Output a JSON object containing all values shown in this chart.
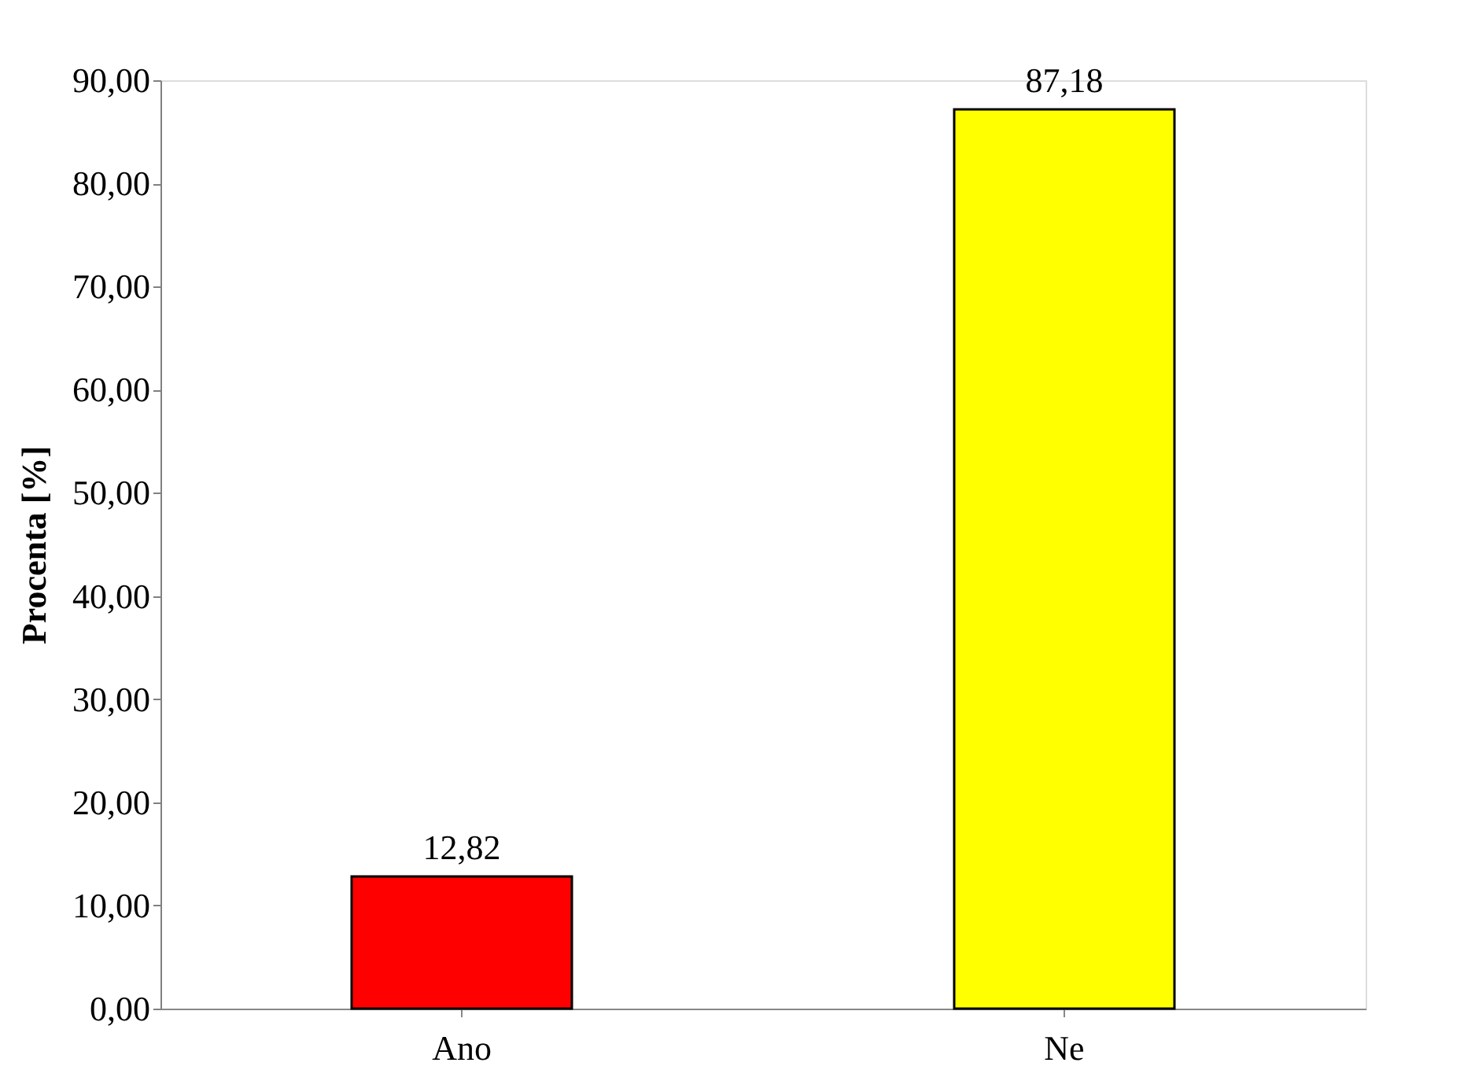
{
  "chart_data": {
    "type": "bar",
    "ylabel": "Procenta [%]",
    "categories": [
      "Ano",
      "Ne"
    ],
    "values": [
      12.82,
      87.18
    ],
    "colors": [
      "#ff0000",
      "#ffff00"
    ],
    "value_labels": [
      "12,82",
      "87,18"
    ],
    "ylim": [
      0,
      90
    ],
    "yticks": [
      {
        "value": 0,
        "label": "0,00"
      },
      {
        "value": 10,
        "label": "10,00"
      },
      {
        "value": 20,
        "label": "20,00"
      },
      {
        "value": 30,
        "label": "30,00"
      },
      {
        "value": 40,
        "label": "40,00"
      },
      {
        "value": 50,
        "label": "50,00"
      },
      {
        "value": 60,
        "label": "60,00"
      },
      {
        "value": 70,
        "label": "70,00"
      },
      {
        "value": 80,
        "label": "80,00"
      },
      {
        "value": 90,
        "label": "90,00"
      }
    ],
    "grid": false
  }
}
